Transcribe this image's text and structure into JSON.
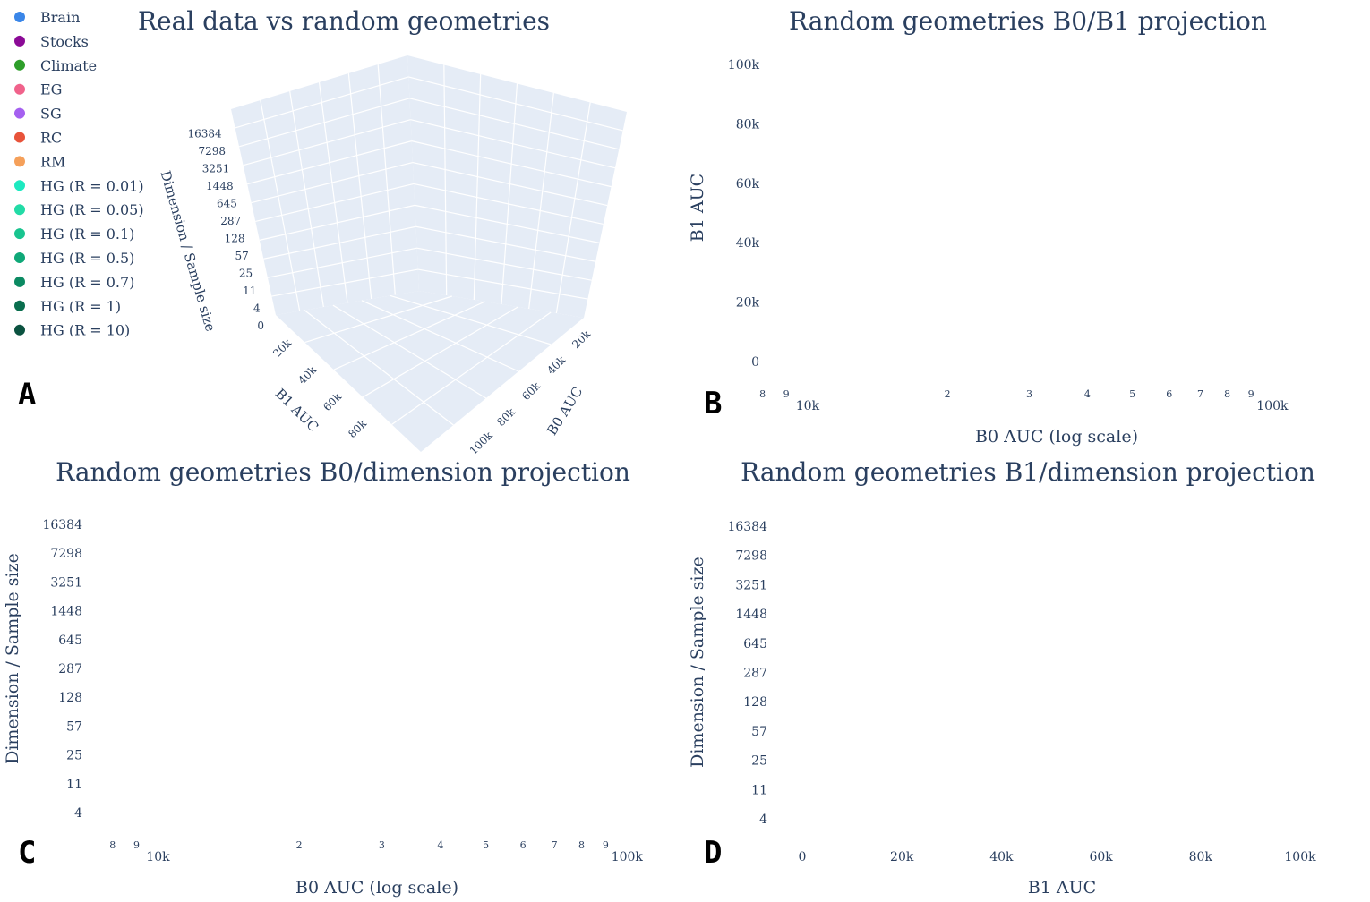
{
  "colors": {
    "Brain": "#3a86e8",
    "Stocks": "#8b0a96",
    "Climate": "#2e9e2a",
    "EG": "#f0628b",
    "SG": "#a560f0",
    "RC": "#e8533a",
    "RM": "#f5a05a",
    "HG (R = 0.01)": "#1de9c0",
    "HG (R = 0.05)": "#22dba6",
    "HG (R = 0.1)": "#19c48f",
    "HG (R = 0.5)": "#0fa878",
    "HG (R = 0.7)": "#0b8a62",
    "HG (R = 1)": "#0a6e4e",
    "HG (R = 10)": "#0b5240"
  },
  "legend": [
    "Brain",
    "Stocks",
    "Climate",
    "EG",
    "SG",
    "RC",
    "RM",
    "HG (R = 0.01)",
    "HG (R = 0.05)",
    "HG (R = 0.1)",
    "HG (R = 0.5)",
    "HG (R = 0.7)",
    "HG (R = 1)",
    "HG (R = 10)"
  ],
  "panel_letters": [
    "A",
    "B",
    "C",
    "D"
  ],
  "chart_data": [
    {
      "type": "scatter3d",
      "title": "Real data vs random geometries",
      "xlabel": "B0 AUC",
      "ylabel": "B1 AUC",
      "zlabel": "Dimension / Sample size",
      "x_ticks": [
        "20k",
        "40k",
        "60k",
        "80k",
        "100k"
      ],
      "y_ticks": [
        "20k",
        "40k",
        "60k",
        "80k"
      ],
      "z_ticks": [
        "0",
        "4",
        "11",
        "25",
        "57",
        "128",
        "287",
        "645",
        "1448",
        "3251",
        "7298",
        "16384"
      ]
    },
    {
      "type": "scatter",
      "title": "Random geometries B0/B1 projection",
      "xlabel": "B0 AUC (log scale)",
      "ylabel": "B1 AUC",
      "xscale": "log",
      "xlim": [
        7700,
        130000
      ],
      "ylim": [
        -5000,
        105000
      ],
      "x_major_ticks": [
        {
          "v": 10000,
          "t": "10k"
        },
        {
          "v": 100000,
          "t": "100k"
        }
      ],
      "x_minor_ticks": [
        {
          "v": 8000,
          "t": "8"
        },
        {
          "v": 9000,
          "t": "9"
        },
        {
          "v": 20000,
          "t": "2"
        },
        {
          "v": 30000,
          "t": "3"
        },
        {
          "v": 40000,
          "t": "4"
        },
        {
          "v": 50000,
          "t": "5"
        },
        {
          "v": 60000,
          "t": "6"
        },
        {
          "v": 70000,
          "t": "7"
        },
        {
          "v": 80000,
          "t": "8"
        },
        {
          "v": 90000,
          "t": "9"
        }
      ],
      "y_ticks": [
        {
          "v": 0,
          "t": "0"
        },
        {
          "v": 20000,
          "t": "20k"
        },
        {
          "v": 40000,
          "t": "40k"
        },
        {
          "v": 60000,
          "t": "60k"
        },
        {
          "v": 80000,
          "t": "80k"
        },
        {
          "v": 100000,
          "t": "100k"
        }
      ]
    },
    {
      "type": "scatter",
      "title": "Random geometries B0/dimension projection",
      "xlabel": "B0 AUC (log scale)",
      "ylabel": "Dimension / Sample size",
      "xscale": "log",
      "xlim": [
        7700,
        130000
      ],
      "x_major_ticks": [
        {
          "v": 10000,
          "t": "10k"
        },
        {
          "v": 100000,
          "t": "100k"
        }
      ],
      "x_minor_ticks": [
        {
          "v": 8000,
          "t": "8"
        },
        {
          "v": 9000,
          "t": "9"
        },
        {
          "v": 20000,
          "t": "2"
        },
        {
          "v": 30000,
          "t": "3"
        },
        {
          "v": 40000,
          "t": "4"
        },
        {
          "v": 50000,
          "t": "5"
        },
        {
          "v": 60000,
          "t": "6"
        },
        {
          "v": 70000,
          "t": "7"
        },
        {
          "v": 80000,
          "t": "8"
        },
        {
          "v": 90000,
          "t": "9"
        }
      ],
      "y_ticks": [
        "4",
        "11",
        "25",
        "57",
        "128",
        "287",
        "645",
        "1448",
        "3251",
        "7298",
        "16384"
      ]
    },
    {
      "type": "scatter",
      "title": "Random geometries B1/dimension projection",
      "xlabel": "B1 AUC",
      "ylabel": "Dimension / Sample size",
      "xlim": [
        -3000,
        105000
      ],
      "x_ticks": [
        {
          "v": 0,
          "t": "0"
        },
        {
          "v": 20000,
          "t": "20k"
        },
        {
          "v": 40000,
          "t": "40k"
        },
        {
          "v": 60000,
          "t": "60k"
        },
        {
          "v": 80000,
          "t": "80k"
        },
        {
          "v": 100000,
          "t": "100k"
        }
      ],
      "y_ticks": [
        "4",
        "11",
        "25",
        "57",
        "128",
        "287",
        "645",
        "1448",
        "3251",
        "7298",
        "16384"
      ]
    }
  ]
}
